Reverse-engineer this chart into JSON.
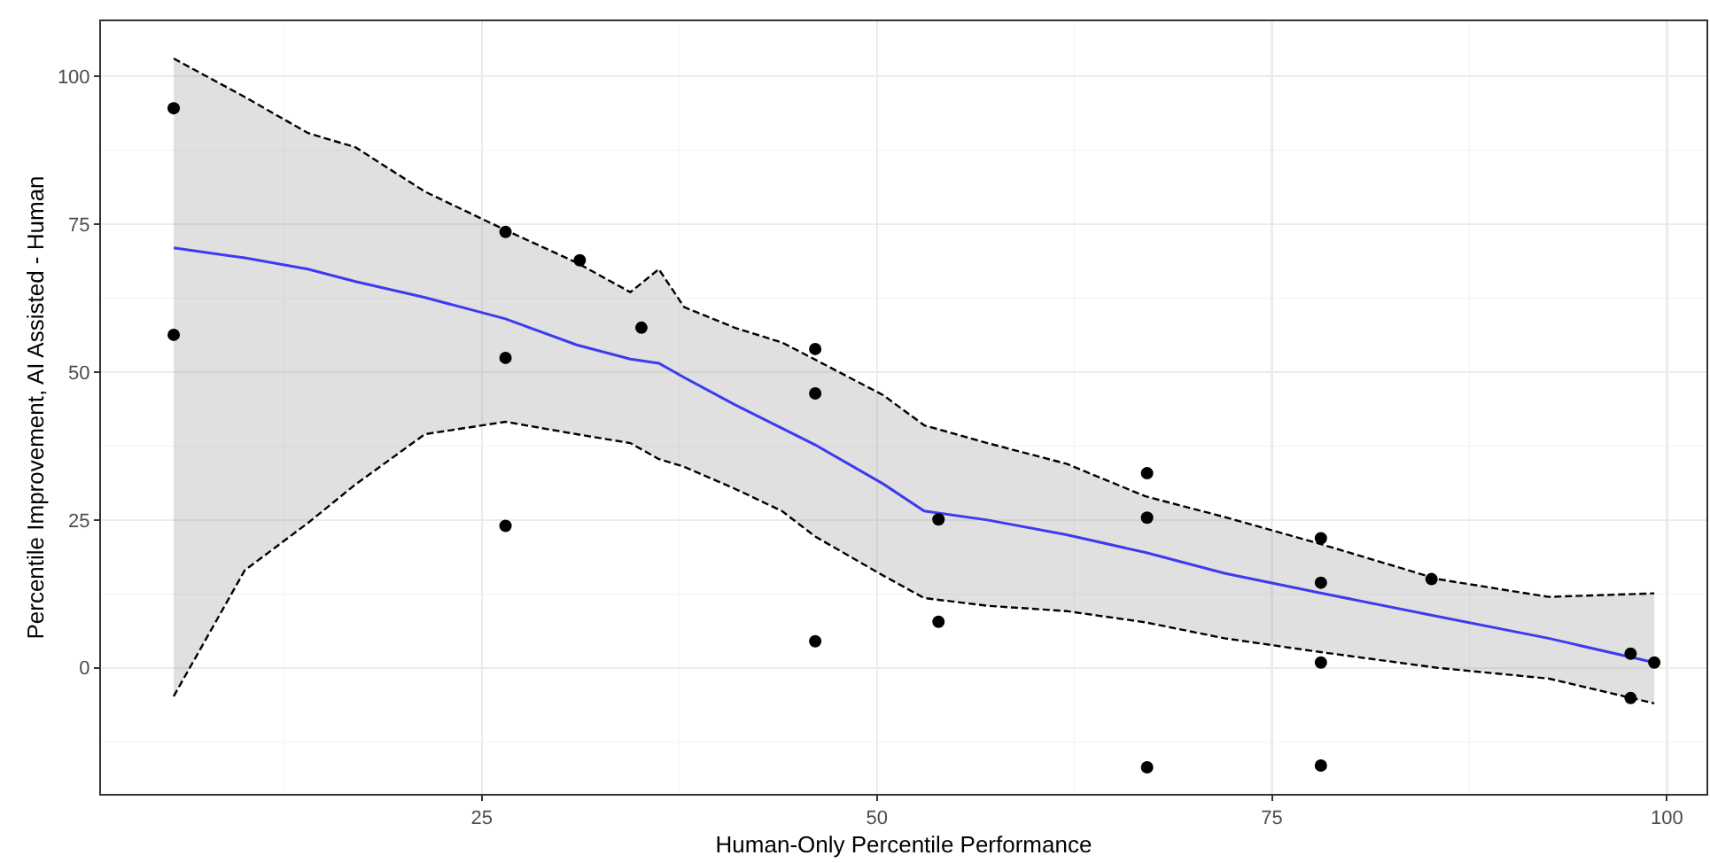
{
  "chart_data": {
    "type": "scatter",
    "xlabel": "Human-Only Percentile Performance",
    "ylabel": "Percentile Improvement, AI Assisted - Human",
    "xlim": [
      0.9,
      102.5
    ],
    "xticks": [
      25,
      50,
      75,
      100
    ],
    "ylim": [
      -21.3,
      109.3
    ],
    "yticks": [
      0,
      25,
      50,
      75,
      100
    ],
    "grid": true,
    "marker": "circle",
    "series": [
      {
        "color": "#000000",
        "x": [
          5.5,
          5.5,
          26.5,
          26.5,
          26.5,
          31.2,
          35.1,
          46.1,
          46.1,
          46.1,
          53.9,
          53.9,
          67.1,
          67.1,
          67.1,
          78.1,
          78.1,
          78.1,
          78.1,
          85.1,
          97.7,
          97.7,
          99.2
        ],
        "values": [
          94.6,
          56.3,
          73.7,
          52.4,
          24.0,
          68.9,
          57.5,
          53.9,
          46.4,
          4.5,
          25.1,
          7.8,
          32.9,
          25.4,
          -16.8,
          21.9,
          14.4,
          0.9,
          -16.5,
          15.0,
          2.4,
          -5.1,
          0.9
        ]
      },
      {
        "type": "line",
        "color": "#3b3bf0",
        "marker": "none",
        "line_style": "solid",
        "x": [
          5.5,
          10,
          14,
          17,
          21.4,
          26.5,
          31,
          34.4,
          36.2,
          37.8,
          41,
          44,
          46.1,
          50.4,
          53,
          57,
          62,
          67,
          72,
          78,
          85.5,
          92.5,
          99.2
        ],
        "values": [
          71.0,
          69.3,
          67.4,
          65.3,
          62.6,
          59.0,
          54.6,
          52.2,
          51.5,
          49.1,
          44.5,
          40.5,
          37.7,
          31.1,
          26.5,
          25.0,
          22.5,
          19.5,
          16.0,
          12.7,
          8.7,
          5.0,
          0.9
        ],
        "upper": [
          103,
          96.5,
          90.4,
          88,
          80.5,
          74,
          68.5,
          63.5,
          67.4,
          61,
          57.5,
          55,
          52.1,
          46.1,
          41,
          38,
          34.5,
          29,
          25.5,
          21,
          15,
          12,
          12.6
        ],
        "lower": [
          -4.8,
          16.5,
          24.5,
          31,
          39.5,
          41.6,
          39.5,
          38,
          35.3,
          34,
          30.3,
          26.5,
          22.2,
          15.6,
          11.8,
          10.5,
          9.6,
          7.7,
          5,
          2.7,
          0,
          -1.8,
          -6
        ]
      },
      {
        "type": "line",
        "color": "#000000",
        "marker": "none",
        "line_style": "dashed",
        "x": [
          5.5,
          10,
          14,
          17,
          21.4,
          26.5,
          31,
          34.4,
          36.2,
          37.8,
          41,
          44,
          46.1,
          50.4,
          53,
          57,
          62,
          67,
          72,
          78,
          85.5,
          92.5,
          99.2
        ],
        "values": [
          103,
          96.5,
          90.4,
          88,
          80.5,
          74,
          68.5,
          63.5,
          67.4,
          61,
          57.5,
          55,
          52.1,
          46.1,
          41,
          38,
          34.5,
          29,
          25.5,
          21,
          15,
          12,
          12.6
        ]
      },
      {
        "type": "line",
        "color": "#000000",
        "marker": "none",
        "line_style": "dashed",
        "x": [
          5.5,
          10,
          14,
          17,
          21.4,
          26.5,
          31,
          34.4,
          36.2,
          37.8,
          41,
          44,
          46.1,
          50.4,
          53,
          57,
          62,
          67,
          72,
          78,
          85.5,
          92.5,
          99.2
        ],
        "values": [
          -4.8,
          16.5,
          24.5,
          31,
          39.5,
          41.6,
          39.5,
          38,
          35.3,
          34,
          30.3,
          26.5,
          22.2,
          15.6,
          11.8,
          10.5,
          9.6,
          7.7,
          5,
          2.7,
          0,
          -1.8,
          -6
        ]
      }
    ]
  }
}
